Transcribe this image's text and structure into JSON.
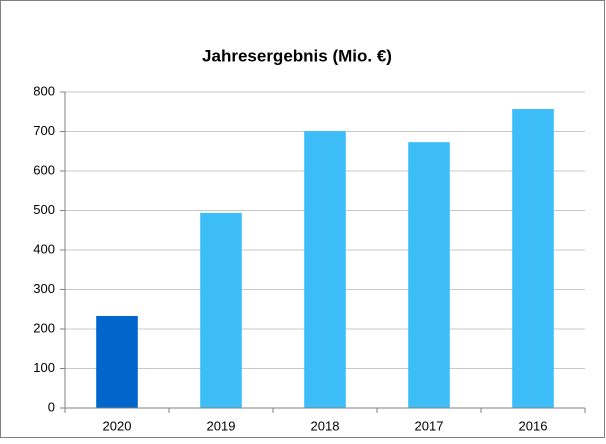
{
  "chart_data": {
    "type": "bar",
    "title": "Jahresergebnis (Mio. €)",
    "categories": [
      "2020",
      "2019",
      "2018",
      "2017",
      "2016"
    ],
    "values": [
      233,
      494,
      701,
      673,
      757
    ],
    "colors": [
      "#0066cc",
      "#3dbef8",
      "#3dbef8",
      "#3dbef8",
      "#3dbef8"
    ],
    "ylim": [
      0,
      800
    ],
    "yticks": [
      0,
      100,
      200,
      300,
      400,
      500,
      600,
      700,
      800
    ],
    "grid": true
  }
}
